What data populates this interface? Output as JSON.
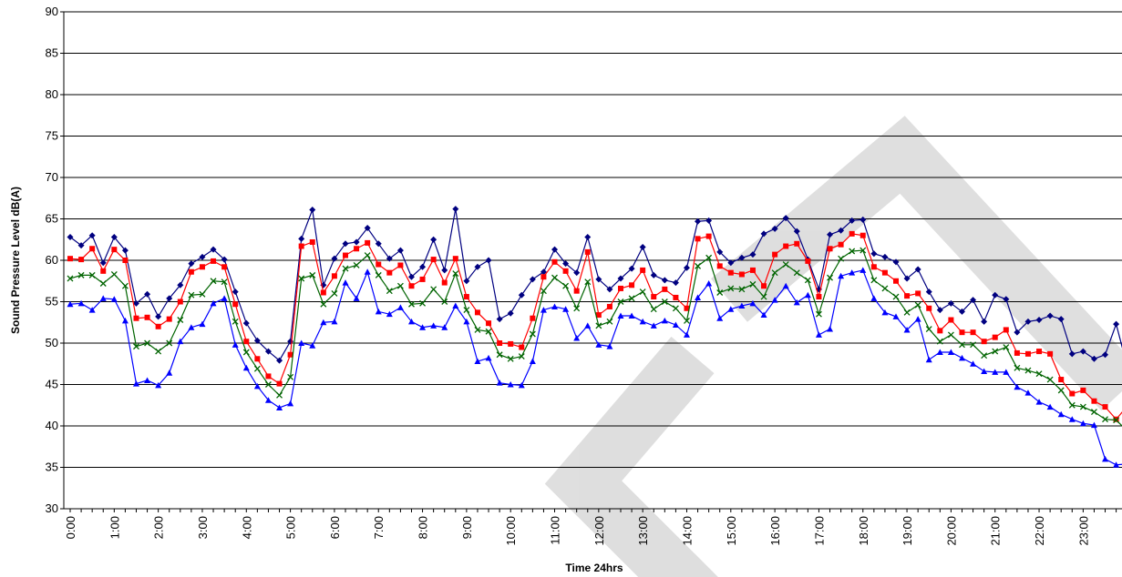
{
  "chart_data": {
    "type": "line",
    "y_label": "Sound Pressure Level dB(A)",
    "x_label": "Time 24hrs",
    "categories": [
      "0:00",
      null,
      null,
      null,
      "1:00",
      null,
      null,
      null,
      "2:00",
      null,
      null,
      null,
      "3:00",
      null,
      null,
      null,
      "4:00",
      null,
      null,
      null,
      "5:00",
      null,
      null,
      null,
      "6:00",
      null,
      null,
      null,
      "7:00",
      null,
      null,
      null,
      "8:00",
      null,
      null,
      null,
      "9:00",
      null,
      null,
      null,
      "10:00",
      null,
      null,
      null,
      "11:00",
      null,
      null,
      null,
      "12:00",
      null,
      null,
      null,
      "13:00",
      null,
      null,
      null,
      "14:00",
      null,
      null,
      null,
      "15:00",
      null,
      null,
      null,
      "16:00",
      null,
      null,
      null,
      "17:00",
      null,
      null,
      null,
      "18:00",
      null,
      null,
      null,
      "19:00",
      null,
      null,
      null,
      "20:00",
      null,
      null,
      null,
      "21:00",
      null,
      null,
      null,
      "22:00",
      null,
      null,
      null,
      "23:00",
      null,
      null,
      null,
      "0:00"
    ],
    "series": [
      {
        "color": "#000080",
        "marker": "diamond",
        "values": [
          62.8,
          61.8,
          63,
          59.7,
          62.8,
          61.2,
          54.8,
          55.9,
          53.2,
          55.4,
          57,
          59.6,
          60.4,
          61.3,
          60.1,
          56.2,
          52.4,
          50.3,
          49,
          47.9,
          50.2,
          62.6,
          66.1,
          57,
          60.2,
          62,
          62.2,
          63.9,
          62,
          60.2,
          61.2,
          58,
          59.2,
          62.5,
          58.8,
          66.2,
          57.5,
          59.2,
          60,
          52.9,
          53.6,
          55.8,
          57.7,
          58.6,
          61.3,
          59.6,
          58.5,
          62.8,
          57.7,
          56.5,
          57.8,
          59,
          61.6,
          58.2,
          57.6,
          57.3,
          59.1,
          64.7,
          64.8,
          61,
          59.7,
          60.3,
          60.7,
          63.2,
          63.8,
          65.1,
          63.5,
          60.1,
          56.5,
          63.1,
          63.6,
          64.8,
          64.9,
          60.8,
          60.4,
          59.8,
          57.8,
          58.9,
          56.2,
          54,
          54.8,
          53.8,
          55.2,
          52.6,
          55.8,
          55.3,
          51.3,
          52.6,
          52.8,
          53.3,
          52.9,
          48.7,
          49,
          48.1,
          48.6,
          52.3,
          47.2
        ]
      },
      {
        "color": "#ff0000",
        "marker": "square",
        "values": [
          60.2,
          60.1,
          61.4,
          58.7,
          61.3,
          60,
          53,
          53.1,
          52,
          52.9,
          55,
          58.6,
          59.2,
          59.9,
          59.2,
          54.7,
          50.2,
          48.1,
          46,
          45.1,
          48.6,
          61.7,
          62.2,
          56.1,
          58.1,
          60.6,
          61.4,
          62.1,
          59.5,
          58.5,
          59.4,
          56.9,
          57.7,
          60.1,
          57.3,
          60.2,
          55.6,
          53.7,
          52.4,
          50,
          49.9,
          49.5,
          53,
          58,
          59.8,
          58.7,
          56.3,
          61,
          53.4,
          54.4,
          56.6,
          57,
          58.8,
          55.6,
          56.5,
          55.5,
          54.2,
          62.6,
          62.9,
          59.3,
          58.5,
          58.3,
          58.8,
          56.9,
          60.7,
          61.7,
          62,
          59.9,
          55.6,
          61.4,
          61.9,
          63.2,
          63,
          59.2,
          58.5,
          57.5,
          55.7,
          56,
          54.2,
          51.5,
          52.8,
          51.3,
          51.3,
          50.2,
          50.7,
          51.6,
          48.8,
          48.7,
          49,
          48.7,
          45.6,
          43.9,
          44.3,
          43,
          42.3,
          40.8,
          42.4
        ]
      },
      {
        "color": "#006400",
        "marker": "x",
        "values": [
          57.8,
          58.2,
          58.2,
          57.2,
          58.3,
          56.9,
          49.6,
          50,
          49,
          50,
          52.8,
          55.8,
          55.9,
          57.5,
          57.4,
          52.6,
          48.9,
          46.9,
          45,
          43.7,
          45.9,
          57.8,
          58.2,
          54.7,
          56,
          59,
          59.4,
          60.6,
          58.2,
          56.3,
          56.9,
          54.7,
          54.8,
          56.5,
          55,
          58.4,
          54,
          51.6,
          51.4,
          48.6,
          48.1,
          48.4,
          51.1,
          56.3,
          57.9,
          56.9,
          54.2,
          57.4,
          52.1,
          52.6,
          55,
          55.4,
          56.2,
          54.1,
          55,
          54.2,
          52.7,
          59.3,
          60.3,
          56.1,
          56.6,
          56.5,
          57.1,
          55.6,
          58.5,
          59.5,
          58.5,
          57.6,
          53.5,
          57.9,
          60.2,
          61.1,
          61.2,
          57.6,
          56.6,
          55.6,
          53.7,
          54.6,
          51.7,
          50.2,
          51,
          49.8,
          49.8,
          48.5,
          49,
          49.5,
          47,
          46.7,
          46.3,
          45.6,
          44.3,
          42.5,
          42.3,
          41.7,
          40.8,
          40.7,
          39.4
        ]
      },
      {
        "color": "#0000ff",
        "marker": "triangle",
        "values": [
          54.7,
          54.8,
          54,
          55.4,
          55.3,
          52.7,
          45.1,
          45.5,
          44.9,
          46.4,
          50.2,
          51.9,
          52.3,
          54.8,
          55.4,
          49.8,
          47,
          44.8,
          43.1,
          42.2,
          42.7,
          50,
          49.7,
          52.5,
          52.6,
          57.3,
          55.4,
          58.6,
          53.8,
          53.5,
          54.3,
          52.6,
          51.9,
          52.1,
          51.9,
          54.5,
          52.6,
          47.8,
          48.2,
          45.2,
          45,
          44.9,
          47.8,
          54,
          54.4,
          54.1,
          50.6,
          52.1,
          49.8,
          49.6,
          53.3,
          53.3,
          52.6,
          52.1,
          52.7,
          52.2,
          51,
          55.5,
          57.2,
          53,
          54.1,
          54.5,
          54.8,
          53.4,
          55.2,
          56.9,
          54.9,
          55.8,
          51,
          51.7,
          58.1,
          58.5,
          58.8,
          55.4,
          53.7,
          53.2,
          51.6,
          52.9,
          48,
          48.9,
          48.9,
          48.2,
          47.5,
          46.6,
          46.5,
          46.5,
          44.7,
          44,
          42.9,
          42.3,
          41.4,
          40.8,
          40.3,
          40.1,
          36,
          35.3,
          35.4
        ]
      }
    ],
    "ylim": [
      30,
      90
    ],
    "yticks": [
      30,
      35,
      40,
      45,
      50,
      55,
      60,
      65,
      70,
      75,
      80,
      85,
      90
    ],
    "grid": true
  }
}
